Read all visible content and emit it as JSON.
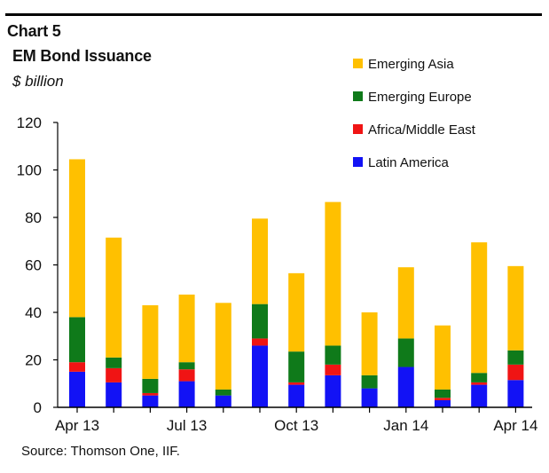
{
  "header": {
    "chart_label": "Chart 5",
    "title": "EM Bond Issuance",
    "unit": "$ billion"
  },
  "source": "Source: Thomson One, IIF.",
  "chart_data": {
    "type": "bar",
    "stacked": true,
    "title": "EM Bond Issuance",
    "xlabel": "",
    "ylabel": "$ billion",
    "ylim": [
      0,
      120
    ],
    "yticks": [
      0,
      20,
      40,
      60,
      80,
      100,
      120
    ],
    "categories": [
      "Apr 13",
      "May 13",
      "Jun 13",
      "Jul 13",
      "Aug 13",
      "Sep 13",
      "Oct 13",
      "Nov 13",
      "Dec 13",
      "Jan 14",
      "Feb 14",
      "Mar 14",
      "Apr 14"
    ],
    "xtick_labels": [
      {
        "index": 0,
        "label": "Apr 13"
      },
      {
        "index": 3,
        "label": "Jul 13"
      },
      {
        "index": 6,
        "label": "Oct 13"
      },
      {
        "index": 9,
        "label": "Jan 14"
      },
      {
        "index": 12,
        "label": "Apr 14"
      }
    ],
    "series": [
      {
        "name": "Latin America",
        "color": "#1212f5",
        "values": [
          15,
          10.5,
          5,
          11,
          5,
          26,
          9.5,
          13.5,
          8,
          17,
          3,
          9.5,
          11.5
        ]
      },
      {
        "name": "Africa/Middle East",
        "color": "#f01414",
        "values": [
          4,
          6,
          1,
          5,
          0,
          3,
          1,
          4.5,
          0,
          0,
          1,
          1,
          6.5
        ]
      },
      {
        "name": "Emerging Europe",
        "color": "#0f7a1a",
        "values": [
          19,
          4.5,
          6,
          3,
          2.5,
          14.5,
          13,
          8,
          5.5,
          12,
          3.5,
          4,
          6
        ]
      },
      {
        "name": "Emerging Asia",
        "color": "#ffc000",
        "values": [
          66.5,
          50.5,
          31,
          28.5,
          36.5,
          36,
          33,
          60.5,
          26.5,
          30,
          27,
          55,
          35.5
        ]
      }
    ],
    "legend_order": [
      "Emerging Asia",
      "Emerging Europe",
      "Africa/Middle East",
      "Latin America"
    ],
    "legend_position": "top-right",
    "grid": false
  }
}
